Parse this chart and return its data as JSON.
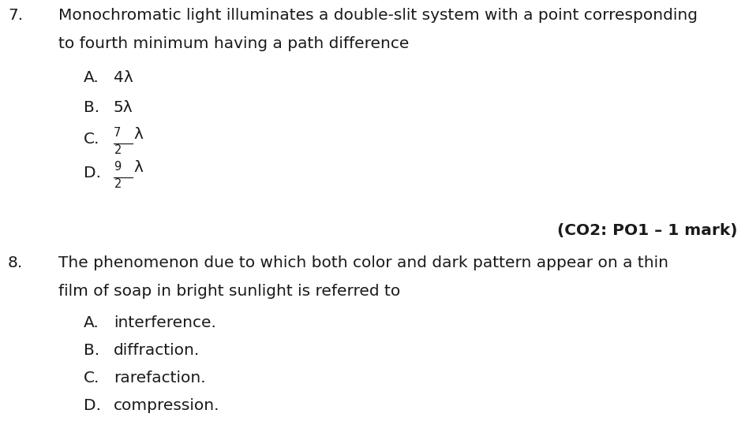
{
  "bg_color": "#ffffff",
  "text_color": "#1a1a1a",
  "q7_number": "7.",
  "q7_line1": "Monochromatic light illuminates a double-slit system with a point corresponding",
  "q7_line2": "to fourth minimum having a path difference",
  "co_note": "(CO2: PO1 – 1 mark)",
  "q8_number": "8.",
  "q8_line1": "The phenomenon due to which both color and dark pattern appear on a thin",
  "q8_line2": "film of soap in bright sunlight is referred to",
  "q8_options": [
    "interference.",
    "diffraction.",
    "rarefaction.",
    "compression."
  ],
  "option_labels": [
    "A.",
    "B.",
    "C.",
    "D."
  ],
  "main_font_size": 14.5,
  "small_font_size": 10.5
}
